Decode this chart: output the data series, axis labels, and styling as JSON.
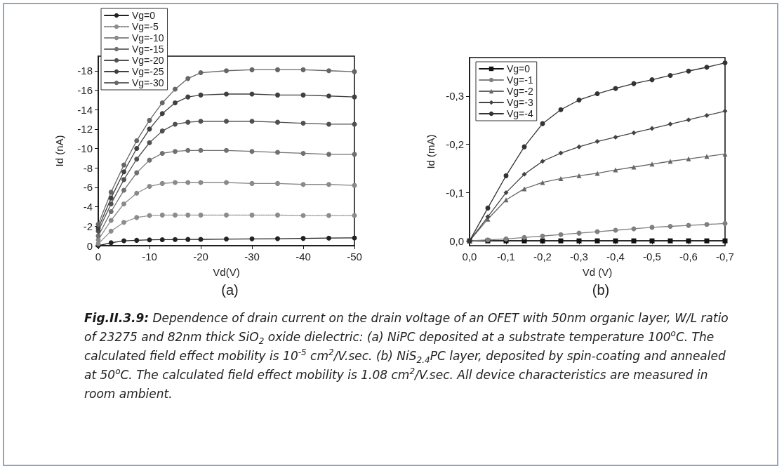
{
  "chart_data": [
    {
      "type": "line",
      "annotations": [
        "(a)"
      ],
      "xlabel": "Vd(V)",
      "ylabel": "Id (nA)",
      "xlim": [
        0,
        -50
      ],
      "xticks": [
        0,
        -10,
        -20,
        -30,
        -40,
        -50
      ],
      "ylim": [
        0,
        -19.5
      ],
      "yticks": [
        0,
        -2,
        -4,
        -6,
        -8,
        -10,
        -12,
        -14,
        -16,
        -18
      ],
      "legend": "top left",
      "marker": "circle",
      "grid": false,
      "x": [
        0,
        -2.5,
        -5,
        -7.5,
        -10,
        -12.5,
        -15,
        -17.5,
        -20,
        -25,
        -30,
        -35,
        -40,
        -45,
        -50
      ],
      "series": [
        {
          "name": "Vg=0",
          "color": "#222222",
          "values": [
            0,
            -0.3,
            -0.5,
            -0.55,
            -0.6,
            -0.62,
            -0.63,
            -0.64,
            -0.65,
            -0.68,
            -0.7,
            -0.72,
            -0.75,
            -0.78,
            -0.8
          ]
        },
        {
          "name": "Vg=-5",
          "color": "#8c8c8c",
          "line_style": "dotted",
          "values": [
            -0.2,
            -1.5,
            -2.4,
            -2.9,
            -3.1,
            -3.15,
            -3.15,
            -3.15,
            -3.15,
            -3.15,
            -3.15,
            -3.15,
            -3.1,
            -3.1,
            -3.1
          ]
        },
        {
          "name": "Vg=-10",
          "color": "#8a8a8a",
          "values": [
            -0.6,
            -2.6,
            -4.3,
            -5.4,
            -6.1,
            -6.4,
            -6.5,
            -6.5,
            -6.5,
            -6.5,
            -6.4,
            -6.4,
            -6.3,
            -6.3,
            -6.2
          ]
        },
        {
          "name": "Vg=-15",
          "color": "#707070",
          "values": [
            -1.0,
            -3.5,
            -5.7,
            -7.5,
            -8.8,
            -9.5,
            -9.7,
            -9.8,
            -9.8,
            -9.8,
            -9.7,
            -9.6,
            -9.5,
            -9.4,
            -9.4
          ]
        },
        {
          "name": "Vg=-20",
          "color": "#505050",
          "values": [
            -1.5,
            -4.3,
            -6.8,
            -8.9,
            -10.6,
            -11.8,
            -12.5,
            -12.7,
            -12.8,
            -12.8,
            -12.8,
            -12.7,
            -12.6,
            -12.5,
            -12.5
          ]
        },
        {
          "name": "Vg=-25",
          "color": "#404040",
          "values": [
            -1.8,
            -4.9,
            -7.6,
            -10.0,
            -12.0,
            -13.6,
            -14.7,
            -15.3,
            -15.5,
            -15.6,
            -15.6,
            -15.5,
            -15.5,
            -15.4,
            -15.3
          ]
        },
        {
          "name": "Vg=-30",
          "color": "#666666",
          "values": [
            -2.2,
            -5.5,
            -8.3,
            -10.8,
            -12.9,
            -14.7,
            -16.1,
            -17.2,
            -17.8,
            -18.0,
            -18.1,
            -18.1,
            -18.1,
            -18.0,
            -17.9
          ]
        }
      ]
    },
    {
      "type": "line",
      "annotations": [
        "(b)"
      ],
      "xlabel": "Vd (V)",
      "ylabel": "Id (mA)",
      "xlim": [
        0,
        -0.7
      ],
      "xticks": [
        {
          "value": 0,
          "label": "0,0"
        },
        {
          "value": -0.1,
          "label": "-0,1"
        },
        {
          "value": -0.2,
          "label": "-0,2"
        },
        {
          "value": -0.3,
          "label": "-0,3"
        },
        {
          "value": -0.4,
          "label": "-0,4"
        },
        {
          "value": -0.5,
          "label": "-0,5"
        },
        {
          "value": -0.6,
          "label": "-0,6"
        },
        {
          "value": -0.7,
          "label": "-0,7"
        }
      ],
      "ylim": [
        0.01,
        -0.38
      ],
      "yticks": [
        {
          "value": 0,
          "label": "0,0"
        },
        {
          "value": -0.1,
          "label": "-0,1"
        },
        {
          "value": -0.2,
          "label": "-0,2"
        },
        {
          "value": -0.3,
          "label": "-0,3"
        }
      ],
      "legend": "top left",
      "grid": false,
      "x": [
        0,
        -0.05,
        -0.1,
        -0.15,
        -0.2,
        -0.25,
        -0.3,
        -0.35,
        -0.4,
        -0.45,
        -0.5,
        -0.55,
        -0.6,
        -0.65,
        -0.7
      ],
      "series": [
        {
          "name": "Vg=0",
          "color": "#111111",
          "marker": "square",
          "values": [
            0,
            0,
            0,
            0,
            0,
            0,
            0,
            0,
            0,
            0,
            0,
            0,
            0,
            0,
            0
          ]
        },
        {
          "name": "Vg=-1",
          "color": "#808080",
          "marker": "circle",
          "values": [
            0,
            -0.002,
            -0.004,
            -0.007,
            -0.01,
            -0.013,
            -0.016,
            -0.019,
            -0.022,
            -0.025,
            -0.028,
            -0.03,
            -0.032,
            -0.034,
            -0.036
          ]
        },
        {
          "name": "Vg=-2",
          "color": "#666666",
          "marker": "triangle",
          "values": [
            0,
            -0.045,
            -0.085,
            -0.108,
            -0.121,
            -0.129,
            -0.135,
            -0.14,
            -0.147,
            -0.153,
            -0.159,
            -0.165,
            -0.17,
            -0.175,
            -0.18
          ]
        },
        {
          "name": "Vg=-3",
          "color": "#444444",
          "marker": "diamond",
          "values": [
            0,
            -0.05,
            -0.1,
            -0.138,
            -0.165,
            -0.182,
            -0.195,
            -0.206,
            -0.215,
            -0.224,
            -0.233,
            -0.242,
            -0.251,
            -0.26,
            -0.269
          ]
        },
        {
          "name": "Vg=-4",
          "color": "#333333",
          "marker": "circle",
          "values": [
            0,
            -0.068,
            -0.135,
            -0.195,
            -0.243,
            -0.272,
            -0.292,
            -0.305,
            -0.316,
            -0.326,
            -0.334,
            -0.343,
            -0.352,
            -0.36,
            -0.369
          ]
        }
      ]
    },
    {
      "type": "other",
      "annotations": [
        "Fig.II.3.9:",
        "Dependence of drain current on the drain voltage of an OFET with 50nm organic layer, W/L ratio of 23275 and 82nm thick SiO$_{2}$ oxide dielectric: (a) NiPC deposited at a substrate temperature 100$^{o}$C. The calculated field effect mobility is 10$^{-5}$ cm$^{2}$/V.sec. (b) NiS$_{2.4}$PC layer, deposited by spin-coating and annealed at 50$^{o}$C. The calculated field effect mobility is 1.08 cm$^{2}$/V.sec. All device characteristics are measured in room ambient."
      ]
    }
  ]
}
